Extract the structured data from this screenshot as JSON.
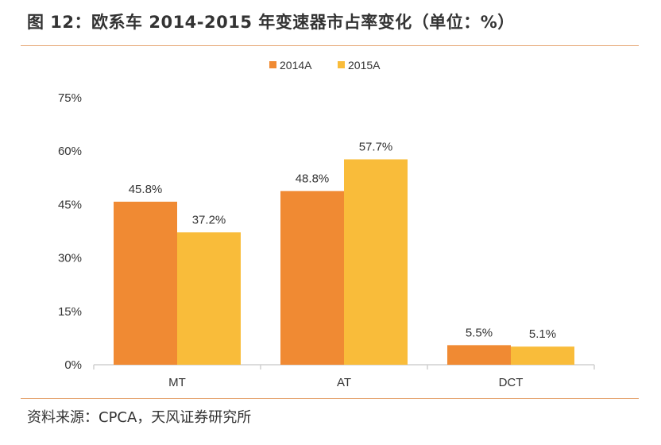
{
  "figure": {
    "title": "图 12：欧系车 2014-2015 年变速器市占率变化（单位：%）",
    "source": "资料来源：CPCA，天风证券研究所"
  },
  "colors": {
    "rule": "#E6A774",
    "series_2014": "#F08A33",
    "series_2015": "#F9BC3A",
    "axis": "#D0D0D0",
    "text": "#333333"
  },
  "chart_data": {
    "type": "bar",
    "title": "欧系车 2014-2015 年变速器市占率变化（单位：%）",
    "xlabel": "",
    "ylabel": "",
    "categories": [
      "MT",
      "AT",
      "DCT"
    ],
    "series": [
      {
        "name": "2014A",
        "values": [
          45.8,
          48.8,
          5.5
        ],
        "labels": [
          "45.8%",
          "48.8%",
          "5.5%"
        ]
      },
      {
        "name": "2015A",
        "values": [
          37.2,
          57.7,
          5.1
        ],
        "labels": [
          "37.2%",
          "57.7%",
          "5.1%"
        ]
      }
    ],
    "ylim": [
      0,
      75
    ],
    "yticks": [
      0,
      15,
      30,
      45,
      60,
      75
    ],
    "ytick_labels": [
      "0%",
      "15%",
      "30%",
      "45%",
      "60%",
      "75%"
    ],
    "grid": false,
    "legend_position": "top-center"
  }
}
